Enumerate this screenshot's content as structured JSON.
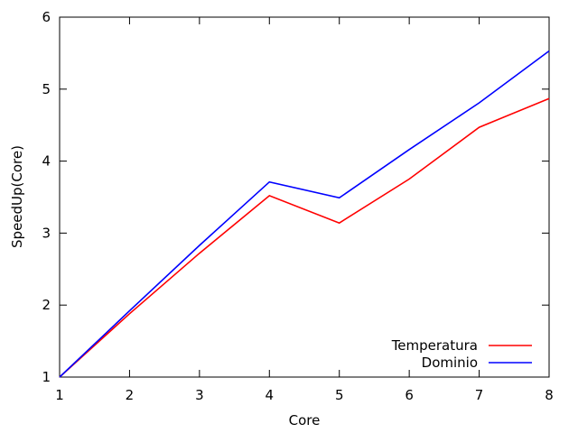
{
  "chart_data": {
    "type": "line",
    "title": "",
    "xlabel": "Core",
    "ylabel": "SpeedUp(Core)",
    "x": [
      1,
      2,
      3,
      4,
      5,
      6,
      7,
      8
    ],
    "xlim": [
      1,
      8
    ],
    "ylim": [
      1,
      6
    ],
    "xticks": [
      "1",
      "2",
      "3",
      "4",
      "5",
      "6",
      "7",
      "8"
    ],
    "yticks": [
      "1",
      "2",
      "3",
      "4",
      "5",
      "6"
    ],
    "grid": false,
    "legend_position": "bottom-right",
    "series": [
      {
        "name": "Temperatura",
        "color": "#ff0000",
        "values": [
          1.0,
          1.88,
          2.72,
          3.52,
          3.14,
          3.75,
          4.47,
          4.87
        ]
      },
      {
        "name": "Dominio",
        "color": "#0000ff",
        "values": [
          1.0,
          1.92,
          2.83,
          3.71,
          3.49,
          4.16,
          4.81,
          5.53
        ]
      }
    ]
  }
}
